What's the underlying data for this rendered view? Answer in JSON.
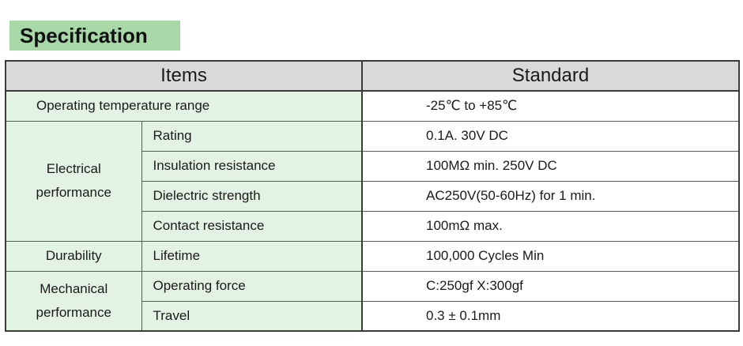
{
  "title": "Specification",
  "table": {
    "headers": {
      "items": "Items",
      "standard": "Standard"
    },
    "rows": {
      "temperature": {
        "label": "Operating temperature range",
        "value": "-25℃ to +85℃"
      },
      "electrical": {
        "group": [
          "Electrical",
          "performance"
        ],
        "items": [
          {
            "label": "Rating",
            "value": "0.1A. 30V DC"
          },
          {
            "label": "Insulation resistance",
            "value": "100MΩ min. 250V DC"
          },
          {
            "label": "Dielectric strength",
            "value": "AC250V(50-60Hz)  for 1 min."
          },
          {
            "label": "Contact resistance",
            "value": "100mΩ max."
          }
        ]
      },
      "durability": {
        "group": "Durability",
        "label": "Lifetime",
        "value": "100,000 Cycles Min"
      },
      "mechanical": {
        "group": [
          "Mechanical",
          "performance"
        ],
        "items": [
          {
            "label": "Operating force",
            "value": "C:250gf  X:300gf"
          },
          {
            "label": "Travel",
            "value": "0.3 ± 0.1mm"
          }
        ]
      }
    }
  },
  "colors": {
    "heading_bg": "#a8d8a8",
    "label_bg": "#e3f3e3",
    "header_bg": "#d9d9d9"
  }
}
